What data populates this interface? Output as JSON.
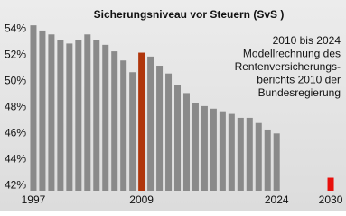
{
  "chart_data": {
    "type": "bar",
    "title": "Sicherungsniveau vor Steuern (SvS )",
    "annotation": [
      "2010 bis 2024",
      "Modellrechnung des",
      "Rentenversicherungs-",
      "berichts 2010 der",
      "Bundesregierung"
    ],
    "x": [
      1997,
      1998,
      1999,
      2000,
      2001,
      2002,
      2003,
      2004,
      2005,
      2006,
      2007,
      2008,
      2009,
      2010,
      2011,
      2012,
      2013,
      2014,
      2015,
      2016,
      2017,
      2018,
      2019,
      2020,
      2021,
      2022,
      2023,
      2024,
      2030
    ],
    "values": [
      54.3,
      53.9,
      53.6,
      53.2,
      52.9,
      53.2,
      53.6,
      53.2,
      52.8,
      52.3,
      51.6,
      50.7,
      52.2,
      51.9,
      51.2,
      50.6,
      49.7,
      49.1,
      48.3,
      48.1,
      47.9,
      47.7,
      47.5,
      47.2,
      47.2,
      46.8,
      46.3,
      46.0,
      42.6
    ],
    "colors": [
      "#8a8a8a",
      "#8a8a8a",
      "#8a8a8a",
      "#8a8a8a",
      "#8a8a8a",
      "#8a8a8a",
      "#8a8a8a",
      "#8a8a8a",
      "#8a8a8a",
      "#8a8a8a",
      "#8a8a8a",
      "#8a8a8a",
      "#b0360c",
      "#8a8a8a",
      "#8a8a8a",
      "#8a8a8a",
      "#8a8a8a",
      "#8a8a8a",
      "#8a8a8a",
      "#8a8a8a",
      "#8a8a8a",
      "#8a8a8a",
      "#8a8a8a",
      "#8a8a8a",
      "#8a8a8a",
      "#8a8a8a",
      "#8a8a8a",
      "#8a8a8a",
      "#e8100c"
    ],
    "xlim": [
      1995.8,
      2031.2
    ],
    "xticks": [
      1997,
      2009,
      2024,
      2030
    ],
    "ylim": [
      41.6,
      55
    ],
    "yticks": [
      {
        "value": 42,
        "label": "42%"
      },
      {
        "value": 44,
        "label": "44%"
      },
      {
        "value": 46,
        "label": "46%"
      },
      {
        "value": 48,
        "label": "48%"
      },
      {
        "value": 50,
        "label": "50%"
      },
      {
        "value": 52,
        "label": "52%"
      },
      {
        "value": 54,
        "label": "54%"
      }
    ]
  }
}
